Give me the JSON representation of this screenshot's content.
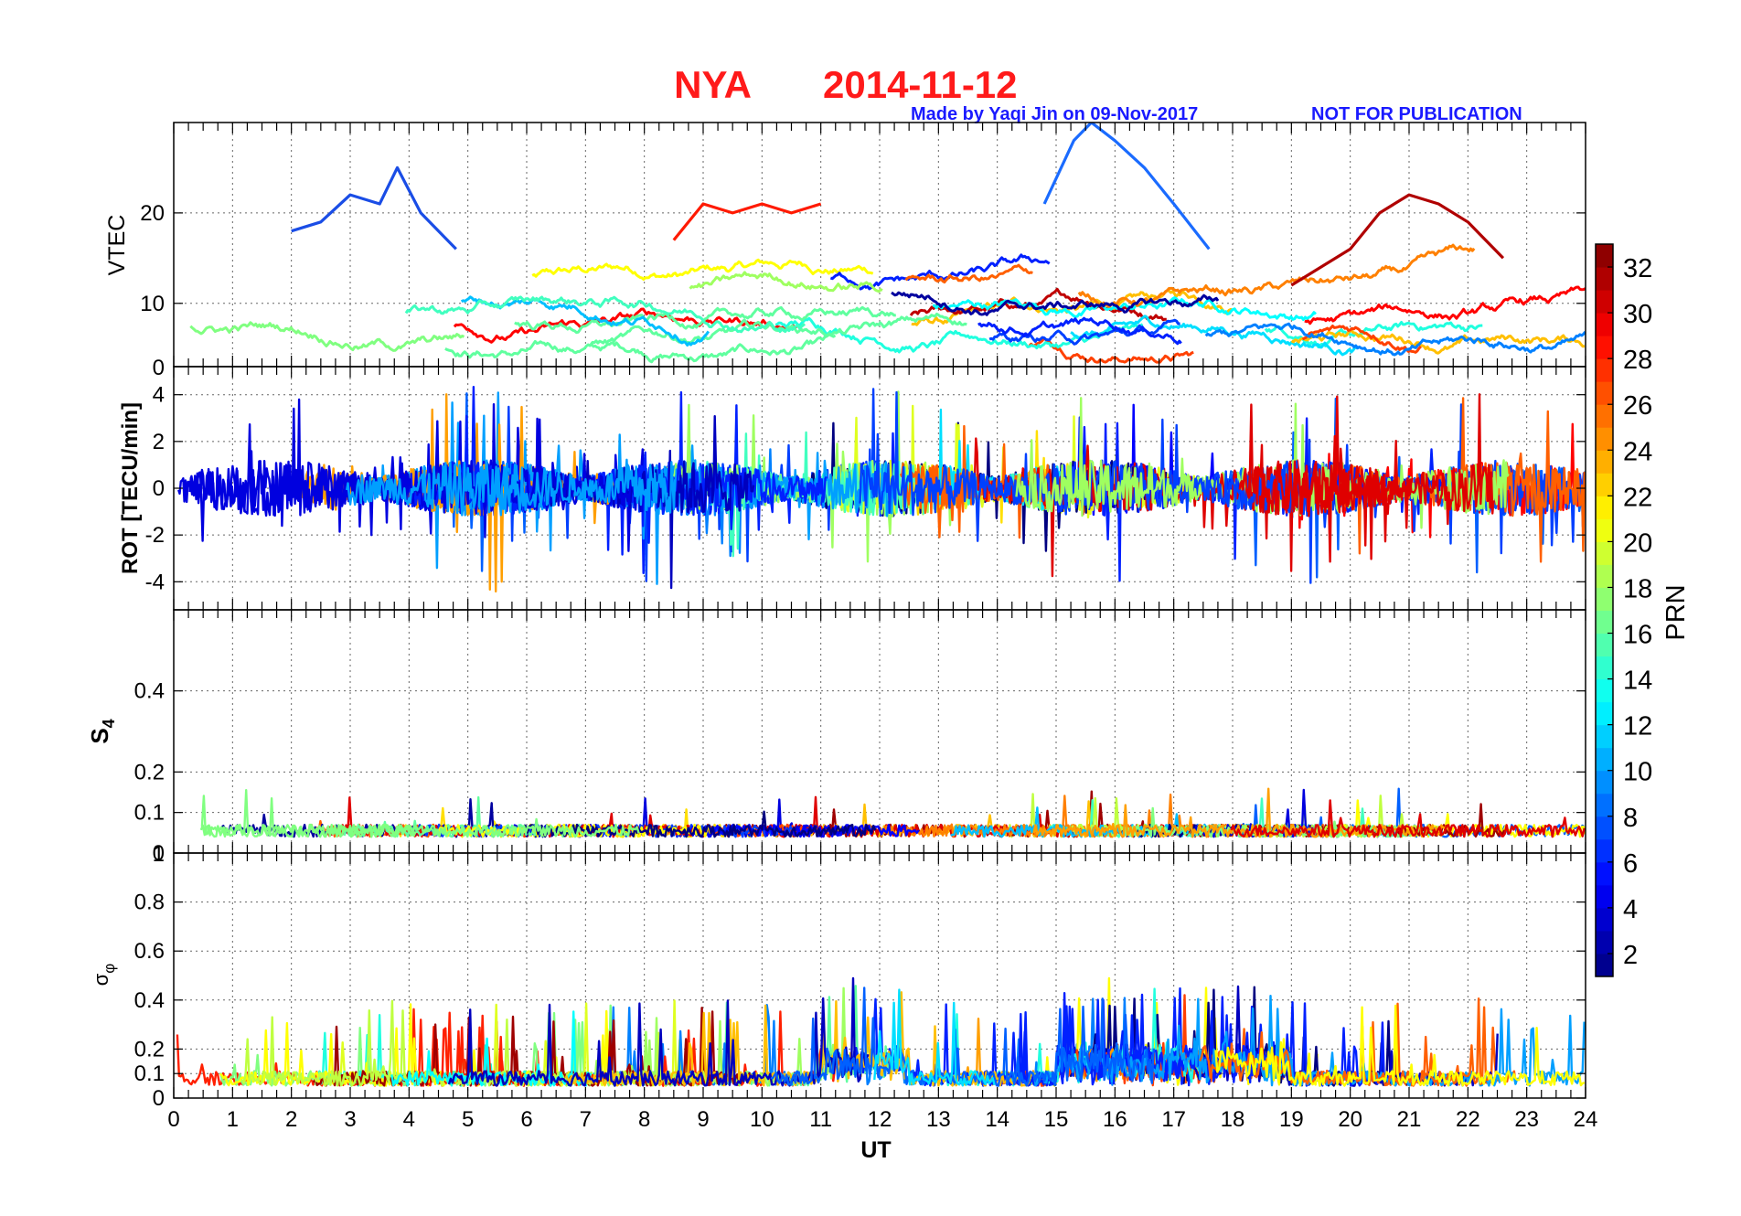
{
  "title": {
    "station": "NYA",
    "date": "2014-11-12",
    "color": "#ff1a1a"
  },
  "credits": {
    "made_by": "Made by Yaqi Jin on 09-Nov-2017",
    "notice": "NOT FOR PUBLICATION",
    "color": "#1a1aff"
  },
  "chart_data": {
    "type": "line",
    "x": {
      "label": "UT",
      "range": [
        0,
        24
      ],
      "ticks": [
        "0",
        "1",
        "2",
        "3",
        "4",
        "5",
        "6",
        "7",
        "8",
        "9",
        "10",
        "11",
        "12",
        "13",
        "14",
        "15",
        "16",
        "17",
        "18",
        "19",
        "20",
        "21",
        "22",
        "23",
        "24"
      ]
    },
    "panels": [
      {
        "id": "vtec",
        "ylabel": "VTEC",
        "ylim": [
          3,
          30
        ],
        "yticks": [
          {
            "v": 10,
            "label": "10"
          },
          {
            "v": 20,
            "label": "20"
          }
        ],
        "bottom_label": "0",
        "description": "multi-satellite VTEC traces colored by PRN",
        "sample_series": [
          {
            "name": "PRN 6",
            "x": [
              2.0,
              2.5,
              3.0,
              3.5,
              3.8,
              4.2,
              4.8
            ],
            "values": [
              18,
              19,
              22,
              21,
              25,
              20,
              16
            ]
          },
          {
            "name": "PRN 6 (late)",
            "x": [
              14.8,
              15.3,
              15.6,
              16.0,
              16.5,
              17.0,
              17.6
            ],
            "values": [
              21,
              28,
              30,
              28,
              25,
              21,
              16
            ]
          },
          {
            "name": "PRN 30",
            "x": [
              19.0,
              20.0,
              20.5,
              21.0,
              21.5,
              22.0,
              22.6
            ],
            "values": [
              12,
              16,
              20,
              22,
              21,
              19,
              15
            ]
          },
          {
            "name": "PRN 28",
            "x": [
              8.5,
              9.0,
              9.5,
              10.0,
              10.5,
              11.0
            ],
            "values": [
              17,
              21,
              20,
              21,
              20,
              21
            ]
          }
        ]
      },
      {
        "id": "rot",
        "ylabel": "ROT [TECU/min]",
        "ylim": [
          -5.2,
          5.2
        ],
        "yticks": [
          {
            "v": -4,
            "label": "-4"
          },
          {
            "v": -2,
            "label": "-2"
          },
          {
            "v": 0,
            "label": "0"
          },
          {
            "v": 2,
            "label": "2"
          },
          {
            "v": 4,
            "label": "4"
          }
        ],
        "description": "rate of TEC fluctuations centered on 0"
      },
      {
        "id": "s4",
        "ylabel": "S4",
        "ylabel_main": "S",
        "ylabel_sub": "4",
        "ylim": [
          0,
          0.6
        ],
        "yticks": [
          {
            "v": 0,
            "label": "0"
          },
          {
            "v": 0.1,
            "label": "0.1"
          },
          {
            "v": 0.2,
            "label": "0.2"
          },
          {
            "v": 0.4,
            "label": "0.4"
          }
        ],
        "bottom_label": "1",
        "description": "amplitude scintillation index, baseline ~0.04-0.08"
      },
      {
        "id": "sigphi",
        "ylabel": "σφ",
        "ylabel_main": "σ",
        "ylabel_sub": "φ",
        "ylim": [
          0,
          1.0
        ],
        "yticks": [
          {
            "v": 0,
            "label": "0"
          },
          {
            "v": 0.1,
            "label": "0.1"
          },
          {
            "v": 0.2,
            "label": "0.2"
          },
          {
            "v": 0.4,
            "label": "0.4"
          },
          {
            "v": 0.6,
            "label": "0.6"
          },
          {
            "v": 0.8,
            "label": "0.8"
          }
        ],
        "description": "phase scintillation index, baseline ~0.05-0.2"
      }
    ],
    "colorbar": {
      "label": "PRN",
      "range": [
        1,
        33
      ],
      "ticks": [
        "2",
        "4",
        "6",
        "8",
        "10",
        "12",
        "14",
        "16",
        "18",
        "20",
        "22",
        "24",
        "26",
        "28",
        "30",
        "32"
      ],
      "colormap": "jet"
    }
  }
}
